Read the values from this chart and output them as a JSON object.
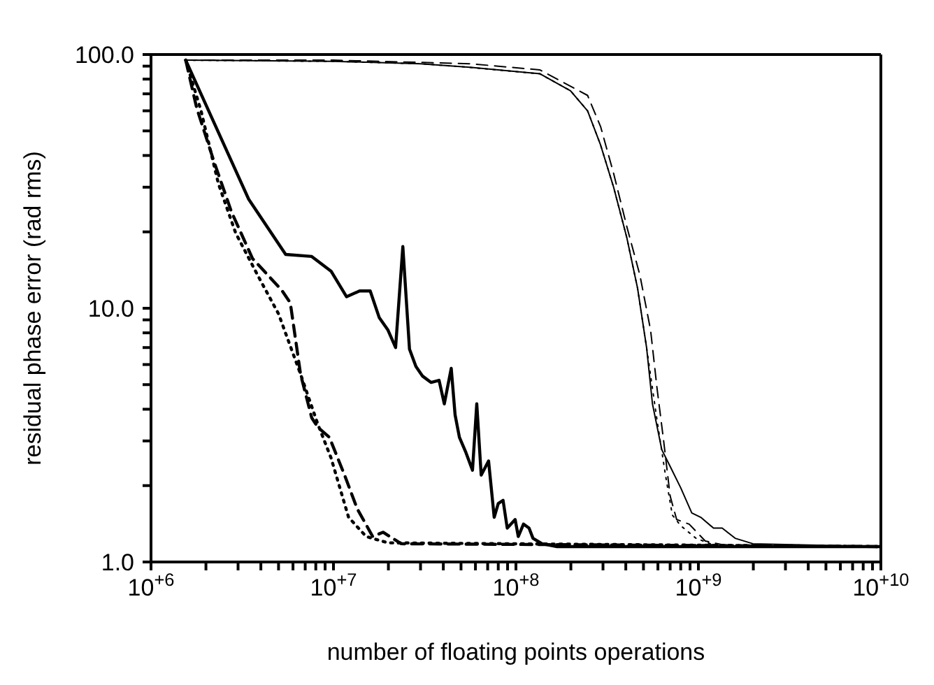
{
  "chart_data": {
    "type": "line",
    "xlabel": "number of floating points operations",
    "ylabel": "residual phase error (rad rms)",
    "log": "xy",
    "marker": "none",
    "xlim": [
      1000000,
      10000000000
    ],
    "xticks": [
      {
        "value": 1000000,
        "label": "10$^{+6}$"
      },
      {
        "value": 2000000,
        "label": null
      },
      {
        "value": 3000000,
        "label": null
      },
      {
        "value": 4000000,
        "label": null
      },
      {
        "value": 5000000,
        "label": null
      },
      {
        "value": 6000000,
        "label": null
      },
      {
        "value": 7000000,
        "label": null
      },
      {
        "value": 8000000,
        "label": null
      },
      {
        "value": 9000000,
        "label": null
      },
      {
        "value": 10000000,
        "label": "10$^{+7}$"
      },
      {
        "value": 20000000,
        "label": null
      },
      {
        "value": 30000000,
        "label": null
      },
      {
        "value": 40000000,
        "label": null
      },
      {
        "value": 50000000,
        "label": null
      },
      {
        "value": 60000000,
        "label": null
      },
      {
        "value": 70000000,
        "label": null
      },
      {
        "value": 80000000,
        "label": null
      },
      {
        "value": 90000000,
        "label": null
      },
      {
        "value": 100000000,
        "label": "10$^{+8}$"
      },
      {
        "value": 200000000,
        "label": null
      },
      {
        "value": 300000000,
        "label": null
      },
      {
        "value": 400000000,
        "label": null
      },
      {
        "value": 500000000,
        "label": null
      },
      {
        "value": 600000000,
        "label": null
      },
      {
        "value": 700000000,
        "label": null
      },
      {
        "value": 800000000,
        "label": null
      },
      {
        "value": 900000000,
        "label": null
      },
      {
        "value": 1000000000,
        "label": "10$^{+9}$"
      },
      {
        "value": 2000000000,
        "label": null
      },
      {
        "value": 3000000000,
        "label": null
      },
      {
        "value": 4000000000,
        "label": null
      },
      {
        "value": 5000000000,
        "label": null
      },
      {
        "value": 6000000000,
        "label": null
      },
      {
        "value": 7000000000,
        "label": null
      },
      {
        "value": 8000000000,
        "label": null
      },
      {
        "value": 9000000000,
        "label": null
      },
      {
        "value": 10000000000,
        "label": "10$^{+10}$"
      }
    ],
    "ylim": [
      1,
      100
    ],
    "yticks": [
      {
        "value": 1,
        "label": "1.0"
      },
      {
        "value": 2,
        "label": null
      },
      {
        "value": 3,
        "label": null
      },
      {
        "value": 4,
        "label": null
      },
      {
        "value": 5,
        "label": null
      },
      {
        "value": 6,
        "label": null
      },
      {
        "value": 7,
        "label": null
      },
      {
        "value": 8,
        "label": null
      },
      {
        "value": 9,
        "label": null
      },
      {
        "value": 10,
        "label": "10.0"
      },
      {
        "value": 20,
        "label": null
      },
      {
        "value": 30,
        "label": null
      },
      {
        "value": 40,
        "label": null
      },
      {
        "value": 50,
        "label": null
      },
      {
        "value": 60,
        "label": null
      },
      {
        "value": 70,
        "label": null
      },
      {
        "value": 80,
        "label": null
      },
      {
        "value": 90,
        "label": null
      },
      {
        "value": 100,
        "label": "100.0"
      }
    ],
    "series": [
      {
        "color": "#000000",
        "line_style": "solid",
        "x": [
          1550000,
          3430000,
          5470000,
          7600000,
          9700000,
          11800000,
          13900000,
          15900000,
          17800000,
          19900000,
          21900000,
          24000000,
          26100000,
          28300000,
          30800000,
          34300000,
          37900000,
          40500000,
          44200000,
          46400000,
          49000000,
          53200000,
          57800000,
          61000000,
          64500000,
          70800000,
          76000000,
          80000000,
          85000000,
          89600000,
          99000000,
          103000000,
          110000000,
          118000000,
          124000000,
          139000000,
          168000000,
          10000000000
        ],
        "values": [
          95,
          26.9,
          16.3,
          16,
          14,
          11.1,
          11.7,
          11.7,
          9.2,
          8.2,
          7,
          17.5,
          6.9,
          5.9,
          5.4,
          5.1,
          5.2,
          4.2,
          5.8,
          3.8,
          3.1,
          2.7,
          2.3,
          4.2,
          2.2,
          2.5,
          1.5,
          1.7,
          1.75,
          1.36,
          1.47,
          1.26,
          1.41,
          1.36,
          1.24,
          1.18,
          1.15,
          1.15
        ]
      },
      {
        "color": "#000000",
        "line_style": "dashed",
        "x": [
          1550000,
          1780000,
          2210000,
          2760000,
          3600000,
          5200000,
          5800000,
          6600000,
          7600000,
          8200000,
          9500000,
          11500000,
          13500000,
          16400000,
          18700000,
          23500000,
          10000000000
        ],
        "values": [
          95,
          61.5,
          38,
          24,
          15.7,
          11.8,
          10.5,
          5.5,
          3.7,
          3.4,
          3.1,
          2.2,
          1.62,
          1.26,
          1.31,
          1.18,
          1.15
        ]
      },
      {
        "color": "#000000",
        "line_style": "dotted",
        "x": [
          1550000,
          1880000,
          2340000,
          2910000,
          3840000,
          5000000,
          6600000,
          8200000,
          9700000,
          12100000,
          15100000,
          19900000,
          10000000000
        ],
        "values": [
          95,
          60,
          31,
          19.8,
          13.5,
          9.5,
          5.5,
          3.5,
          2.57,
          1.5,
          1.26,
          1.19,
          1.15
        ]
      },
      {
        "color": "#000000",
        "line_style": "solid",
        "x": [
          1550000,
          10000000,
          30000000,
          56000000,
          135000000,
          199000000,
          247000000,
          291000000,
          343000000,
          405000000,
          464000000,
          520000000,
          560000000,
          630000000,
          700000000,
          800000000,
          920000000,
          1030000000,
          1210000000,
          1350000000,
          1590000000,
          1990000000,
          10000000000
        ],
        "values": [
          95,
          94,
          92,
          89,
          84,
          72,
          60,
          44,
          30,
          19,
          12,
          7,
          4.2,
          2.77,
          2.38,
          1.96,
          1.56,
          1.5,
          1.36,
          1.36,
          1.24,
          1.18,
          1.15
        ]
      },
      {
        "color": "#000000",
        "line_style": "dashed",
        "x": [
          1550000,
          10000000,
          56000000,
          135000000,
          247000000,
          291000000,
          343000000,
          405000000,
          478000000,
          547000000,
          594000000,
          645000000,
          700000000,
          760000000,
          890000000,
          1090000000,
          1350000000,
          1500000000,
          10000000000
        ],
        "values": [
          95,
          95,
          92,
          87,
          69,
          52,
          34,
          21,
          13.5,
          8.2,
          4.8,
          3,
          1.82,
          1.47,
          1.41,
          1.21,
          1.17,
          1.15,
          1.15
        ]
      },
      {
        "color": "#000000",
        "line_style": "dotted",
        "x": [
          1550000,
          10000000,
          30000000,
          56000000,
          135000000,
          199000000,
          247000000,
          291000000,
          343000000,
          405000000,
          464000000,
          520000000,
          594000000,
          660000000,
          720000000,
          800000000,
          970000000,
          1200000000,
          10000000000
        ],
        "values": [
          95,
          94,
          92,
          89,
          84,
          72,
          60,
          44,
          30,
          19,
          12,
          7,
          3.6,
          2.2,
          1.53,
          1.39,
          1.24,
          1.17,
          1.15
        ]
      }
    ]
  }
}
